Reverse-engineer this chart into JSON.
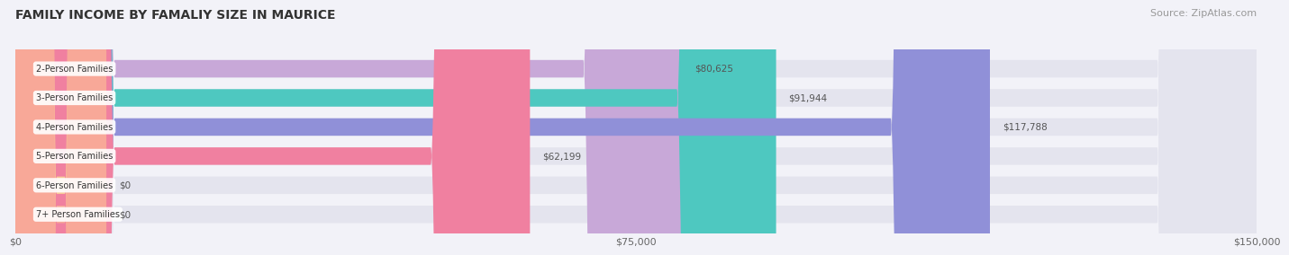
{
  "title": "FAMILY INCOME BY FAMALIY SIZE IN MAURICE",
  "source": "Source: ZipAtlas.com",
  "categories": [
    "2-Person Families",
    "3-Person Families",
    "4-Person Families",
    "5-Person Families",
    "6-Person Families",
    "7+ Person Families"
  ],
  "values": [
    80625,
    91944,
    117788,
    62199,
    0,
    0
  ],
  "bar_colors": [
    "#c8a8d8",
    "#4ec8c0",
    "#9090d8",
    "#f080a0",
    "#f8c898",
    "#f8a898"
  ],
  "value_labels": [
    "$80,625",
    "$91,944",
    "$117,788",
    "$62,199",
    "$0",
    "$0"
  ],
  "xmax": 150000,
  "xticks": [
    0,
    75000,
    150000
  ],
  "xtick_labels": [
    "$0",
    "$75,000",
    "$150,000"
  ],
  "background_color": "#f2f2f8",
  "bar_background_color": "#e4e4ee",
  "title_fontsize": 10,
  "source_fontsize": 8
}
